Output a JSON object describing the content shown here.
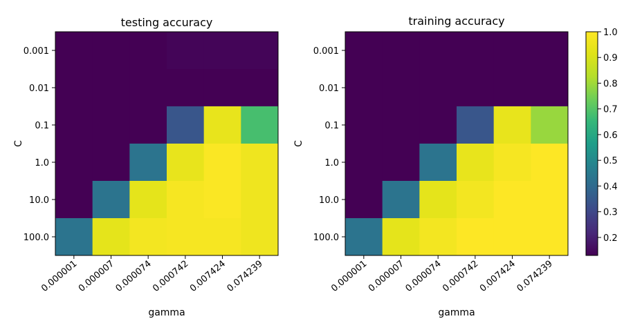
{
  "chart_data": [
    {
      "type": "heatmap",
      "title": "testing accuracy",
      "xlabel": "gamma",
      "ylabel": "C",
      "x_ticks": [
        "0.000001",
        "0.000007",
        "0.000074",
        "0.000742",
        "0.007424",
        "0.074239"
      ],
      "y_ticks": [
        "0.001",
        "0.01",
        "0.1",
        "1.0",
        "10.0",
        "100.0"
      ],
      "values": [
        [
          0.13,
          0.13,
          0.13,
          0.14,
          0.14,
          0.14
        ],
        [
          0.13,
          0.13,
          0.13,
          0.13,
          0.13,
          0.13
        ],
        [
          0.13,
          0.13,
          0.13,
          0.34,
          0.94,
          0.68
        ],
        [
          0.13,
          0.13,
          0.43,
          0.94,
          0.99,
          0.96
        ],
        [
          0.13,
          0.43,
          0.93,
          0.98,
          0.99,
          0.96
        ],
        [
          0.43,
          0.93,
          0.97,
          0.98,
          0.98,
          0.96
        ]
      ]
    },
    {
      "type": "heatmap",
      "title": "training accuracy",
      "xlabel": "gamma",
      "ylabel": "C",
      "x_ticks": [
        "0.000001",
        "0.000007",
        "0.000074",
        "0.000742",
        "0.007424",
        "0.074239"
      ],
      "y_ticks": [
        "0.001",
        "0.01",
        "0.1",
        "1.0",
        "10.0",
        "100.0"
      ],
      "values": [
        [
          0.13,
          0.13,
          0.13,
          0.13,
          0.13,
          0.13
        ],
        [
          0.13,
          0.13,
          0.13,
          0.13,
          0.13,
          0.13
        ],
        [
          0.13,
          0.13,
          0.13,
          0.34,
          0.94,
          0.79
        ],
        [
          0.13,
          0.13,
          0.43,
          0.94,
          0.98,
          1.0
        ],
        [
          0.13,
          0.43,
          0.93,
          0.97,
          1.0,
          1.0
        ],
        [
          0.43,
          0.93,
          0.97,
          1.0,
          1.0,
          1.0
        ]
      ]
    }
  ],
  "colorbar": {
    "min": 0.13,
    "max": 1.0,
    "ticks": [
      "0.2",
      "0.3",
      "0.4",
      "0.5",
      "0.6",
      "0.7",
      "0.8",
      "0.9",
      "1.0"
    ],
    "colormap": "viridis"
  }
}
